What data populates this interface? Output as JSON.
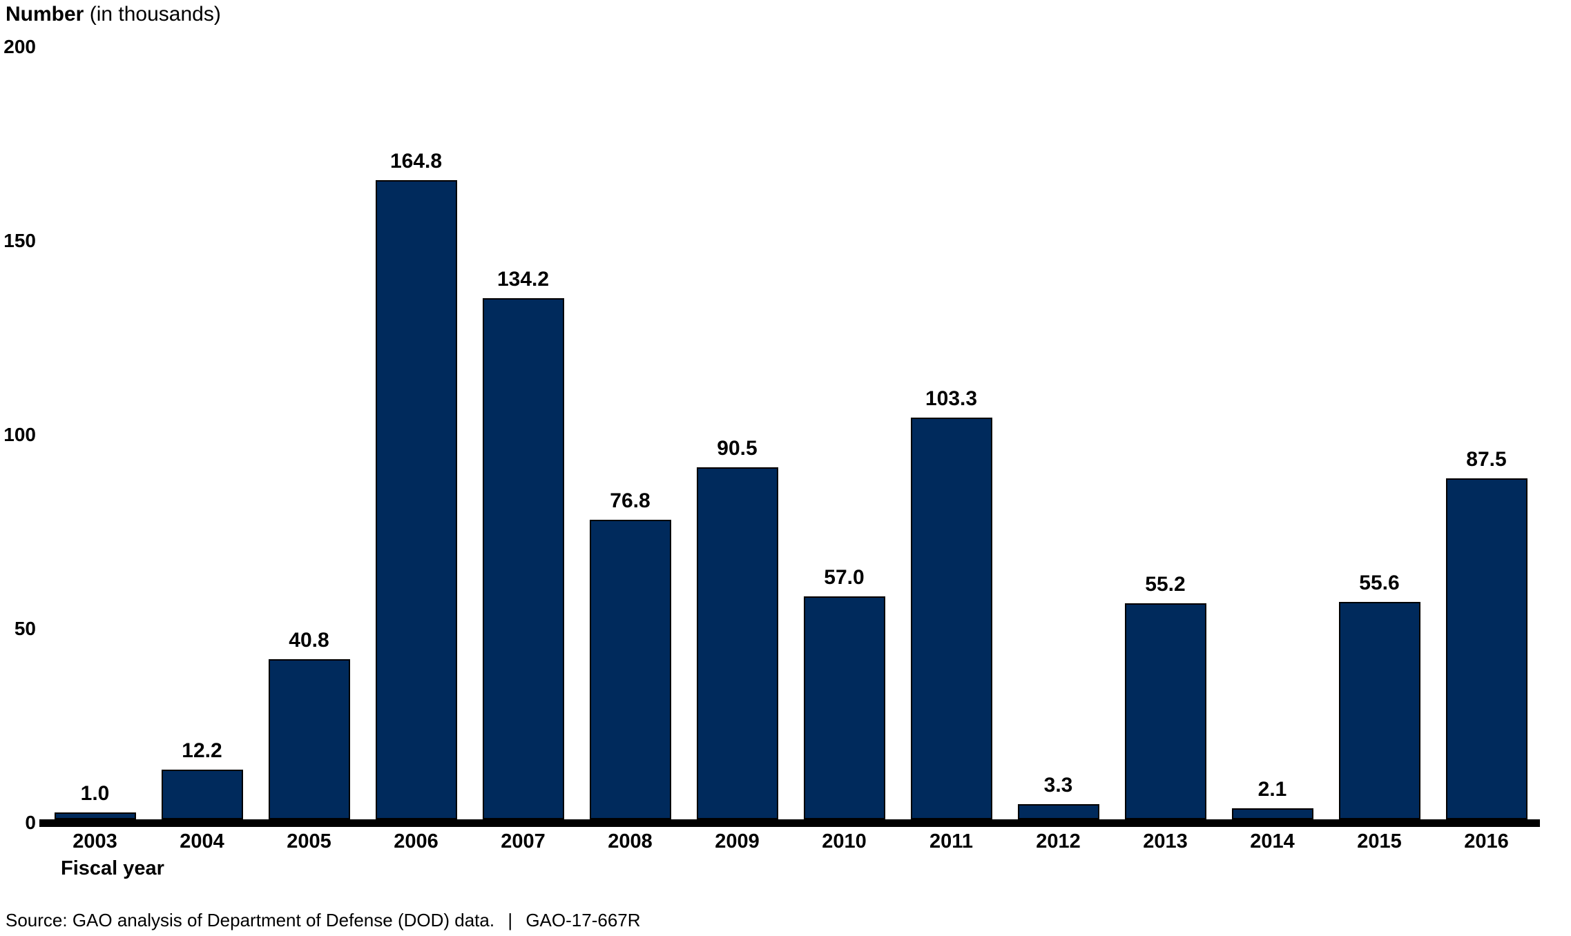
{
  "header": {
    "title": "Number",
    "subtitle": "(in thousands)"
  },
  "chart_data": {
    "type": "bar",
    "title": "Number (in thousands)",
    "xlabel": "Fiscal year",
    "ylabel": "Number (in thousands)",
    "ylim": [
      0,
      200
    ],
    "yticks": [
      0,
      50,
      100,
      150,
      200
    ],
    "grid": false,
    "legend": "none",
    "bar_color": "#002a5c",
    "bar_border_color": "#000000",
    "categories": [
      "2003",
      "2004",
      "2005",
      "2006",
      "2007",
      "2008",
      "2009",
      "2010",
      "2011",
      "2012",
      "2013",
      "2014",
      "2015",
      "2016"
    ],
    "values": [
      1.0,
      12.2,
      40.8,
      164.8,
      134.2,
      76.8,
      90.5,
      57.0,
      103.3,
      3.3,
      55.2,
      2.1,
      55.6,
      87.5
    ],
    "value_labels": [
      "1.0",
      "12.2",
      "40.8",
      "164.8",
      "134.2",
      "76.8",
      "90.5",
      "57.0",
      "103.3",
      "3.3",
      "55.2",
      "2.1",
      "55.6",
      "87.5"
    ]
  },
  "footer": {
    "source_text": "Source: GAO analysis of Department of Defense (DOD) data.",
    "separator": "|",
    "report_number": "GAO-17-667R"
  }
}
